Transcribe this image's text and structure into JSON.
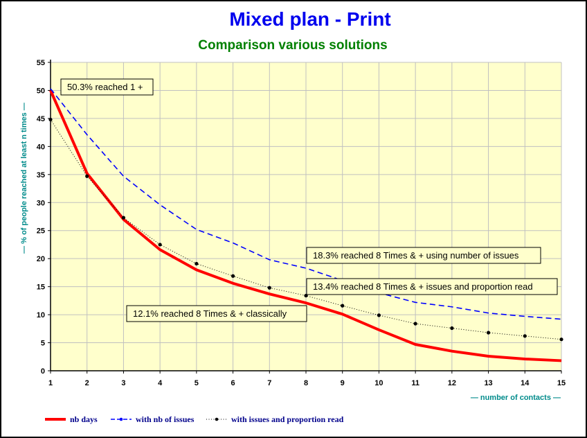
{
  "chart_data": {
    "type": "line",
    "title": "Mixed plan - Print",
    "subtitle": "Comparison various solutions",
    "xlabel": "— number of contacts —",
    "ylabel": "— % of people reached at least n times —",
    "x": [
      1,
      2,
      3,
      4,
      5,
      6,
      7,
      8,
      9,
      10,
      11,
      12,
      13,
      14,
      15
    ],
    "xlim": [
      1,
      15
    ],
    "ylim": [
      0,
      55
    ],
    "yticks": [
      0,
      5,
      10,
      15,
      20,
      25,
      30,
      35,
      40,
      45,
      50,
      55
    ],
    "grid": true,
    "legend_position": "bottom-left",
    "series": [
      {
        "name": "nb days",
        "color": "#ff0000",
        "style": "solid-thick",
        "values": [
          50,
          35.2,
          27,
          21.6,
          18,
          15.6,
          13.7,
          12.1,
          10.1,
          7.3,
          4.7,
          3.5,
          2.6,
          2.1,
          1.8
        ]
      },
      {
        "name": "with nb of issues",
        "color": "#0000ff",
        "style": "dashed",
        "values": [
          50.3,
          42.1,
          34.7,
          29.6,
          25.2,
          22.8,
          19.8,
          18.3,
          16.1,
          13.9,
          12.2,
          11.4,
          10.3,
          9.7,
          9.2
        ]
      },
      {
        "name": "with issues and proportion read",
        "color": "#000000",
        "style": "dotted-markers",
        "values": [
          44.8,
          34.7,
          27.3,
          22.5,
          19.1,
          16.9,
          14.8,
          13.4,
          11.6,
          9.9,
          8.4,
          7.6,
          6.8,
          6.2,
          5.6
        ]
      }
    ],
    "annotations": [
      "50.3% reached 1 +",
      "18.3% reached 8 Times & + using number of issues",
      "13.4% reached 8 Times & + issues and proportion read",
      "12.1% reached 8 Times & + classically"
    ]
  },
  "colors": {
    "title": "#0000ee",
    "subtitle": "#008000",
    "plot_bg": "#ffffcc",
    "axis_label": "#008b8b"
  }
}
